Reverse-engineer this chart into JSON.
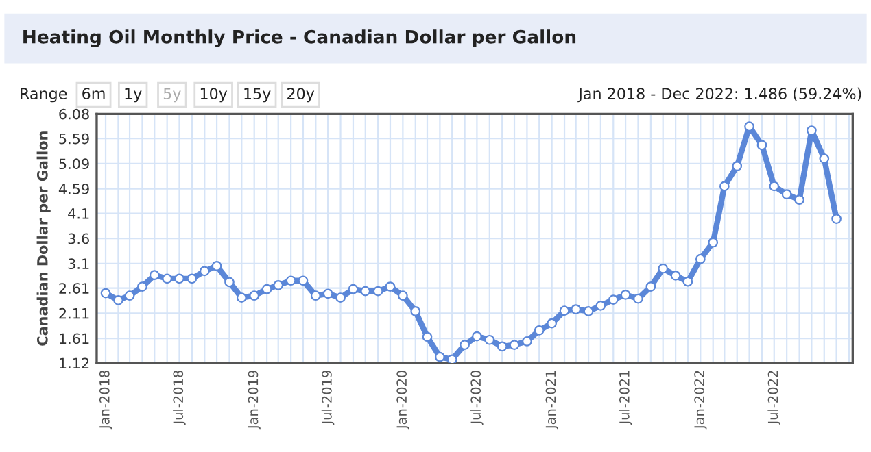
{
  "chart_data": {
    "type": "line",
    "title": "Heating Oil Monthly Price - Canadian Dollar per Gallon",
    "ylabel": "Canadian Dollar per Gallon",
    "annotations": [
      "Range",
      "6m",
      "1y",
      "5y",
      "10y",
      "15y",
      "20y",
      "Jan 2018 - Dec 2022: 1.486 (59.24%)"
    ],
    "x": [
      "2018-01",
      "2018-02",
      "2018-03",
      "2018-04",
      "2018-05",
      "2018-06",
      "2018-07",
      "2018-08",
      "2018-09",
      "2018-10",
      "2018-11",
      "2018-12",
      "2019-01",
      "2019-02",
      "2019-03",
      "2019-04",
      "2019-05",
      "2019-06",
      "2019-07",
      "2019-08",
      "2019-09",
      "2019-10",
      "2019-11",
      "2019-12",
      "2020-01",
      "2020-02",
      "2020-03",
      "2020-04",
      "2020-05",
      "2020-06",
      "2020-07",
      "2020-08",
      "2020-09",
      "2020-10",
      "2020-11",
      "2020-12",
      "2021-01",
      "2021-02",
      "2021-03",
      "2021-04",
      "2021-05",
      "2021-06",
      "2021-07",
      "2021-08",
      "2021-09",
      "2021-10",
      "2021-11",
      "2021-12",
      "2022-01",
      "2022-02",
      "2022-03",
      "2022-04",
      "2022-05",
      "2022-06",
      "2022-07",
      "2022-08",
      "2022-09",
      "2022-10",
      "2022-11",
      "2022-12"
    ],
    "series": [
      {
        "color": "#5b87d8",
        "values": [
          2.51,
          2.37,
          2.46,
          2.64,
          2.87,
          2.8,
          2.8,
          2.8,
          2.95,
          3.05,
          2.73,
          2.42,
          2.46,
          2.59,
          2.67,
          2.76,
          2.76,
          2.46,
          2.5,
          2.42,
          2.59,
          2.55,
          2.55,
          2.64,
          2.46,
          2.15,
          1.64,
          1.24,
          1.19,
          1.48,
          1.65,
          1.58,
          1.45,
          1.48,
          1.55,
          1.77,
          1.91,
          2.16,
          2.19,
          2.15,
          2.26,
          2.38,
          2.48,
          2.4,
          2.64,
          3.0,
          2.86,
          2.74,
          3.19,
          3.52,
          4.64,
          5.04,
          5.83,
          5.46,
          4.64,
          4.48,
          4.37,
          5.75,
          5.19,
          3.99
        ]
      }
    ],
    "xlim": [
      "2017-12-10",
      "2023-01-10"
    ],
    "xticks": [
      {
        "value": "2018-01",
        "label": "Jan-2018"
      },
      {
        "value": "2018-07",
        "label": "Jul-2018"
      },
      {
        "value": "2019-01",
        "label": "Jan-2019"
      },
      {
        "value": "2019-07",
        "label": "Jul-2019"
      },
      {
        "value": "2020-01",
        "label": "Jan-2020"
      },
      {
        "value": "2020-07",
        "label": "Jul-2020"
      },
      {
        "value": "2021-01",
        "label": "Jan-2021"
      },
      {
        "value": "2021-07",
        "label": "Jul-2021"
      },
      {
        "value": "2022-01",
        "label": "Jan-2022"
      },
      {
        "value": "2022-07",
        "label": "Jul-2022"
      }
    ],
    "ylim": [
      1.12,
      6.08
    ],
    "yticks": [
      1.12,
      1.61,
      2.11,
      2.61,
      3.1,
      3.6,
      4.1,
      4.59,
      5.09,
      5.59,
      6.08
    ],
    "grid": true,
    "marker": "circle",
    "line_style": "solid",
    "legend": false
  }
}
